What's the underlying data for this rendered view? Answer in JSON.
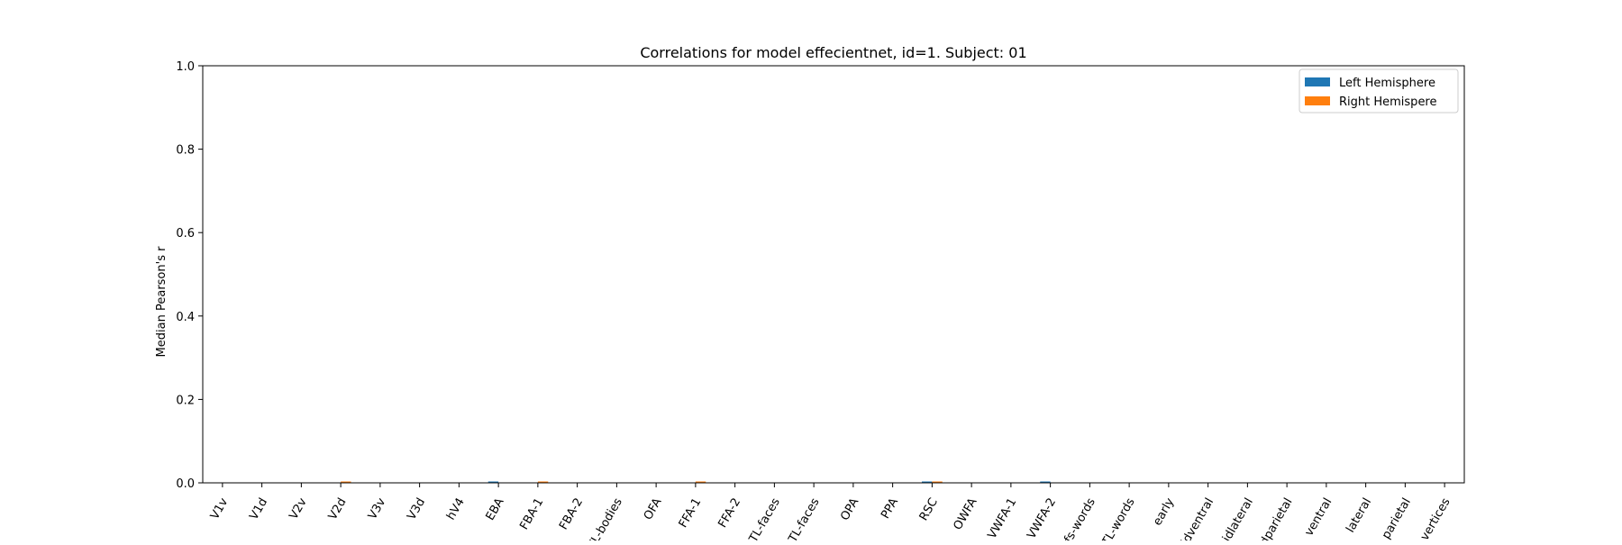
{
  "chart_data": {
    "type": "bar",
    "title": "Correlations for model effecientnet, id=1. Subject: 01",
    "xlabel": "",
    "ylabel": "Median Pearson's r",
    "ylim": [
      0,
      1.0
    ],
    "yticks": [
      "0.0",
      "0.2",
      "0.4",
      "0.6",
      "0.8",
      "1.0"
    ],
    "ytick_values": [
      0,
      0.2,
      0.4,
      0.6,
      0.8,
      1.0
    ],
    "grid": false,
    "legend_position": "top-right",
    "categories": [
      "V1v",
      "V1d",
      "V2v",
      "V2d",
      "V3v",
      "V3d",
      "hV4",
      "EBA",
      "FBA-1",
      "FBA-2",
      "mTL-bodies",
      "OFA",
      "FFA-1",
      "FFA-2",
      "mTL-faces",
      "aTL-faces",
      "OPA",
      "PPA",
      "RSC",
      "OWFA",
      "VWFA-1",
      "VWFA-2",
      "mfs-words",
      "mTL-words",
      "early",
      "midventral",
      "midlateral",
      "midparietal",
      "ventral",
      "lateral",
      "parietal",
      "All vertices"
    ],
    "series": [
      {
        "name": "Left Hemisphere",
        "color": "#1f77b4",
        "values": [
          0,
          0,
          0,
          0,
          0,
          0,
          0,
          0.002,
          0,
          0,
          0,
          0,
          0,
          0,
          0,
          0,
          0,
          0,
          0.002,
          0,
          0,
          0.002,
          0,
          0,
          0,
          0,
          0,
          0,
          0,
          0,
          0,
          0
        ]
      },
      {
        "name": "Right Hemisphere",
        "color": "#ff7f0e",
        "values": [
          0,
          0,
          0,
          0.002,
          0,
          0,
          0,
          0,
          0.002,
          0,
          0,
          0,
          0.002,
          0,
          0,
          0,
          0,
          0,
          0.002,
          0,
          0,
          0,
          0,
          0,
          0,
          0,
          0,
          0,
          0,
          0,
          0,
          0
        ]
      }
    ],
    "legend_labels": [
      "Left Hemisphere",
      "Right Hemispere"
    ]
  }
}
